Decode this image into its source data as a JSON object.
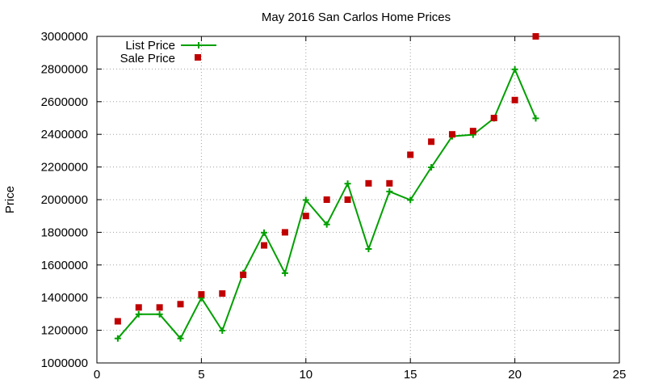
{
  "chart_data": {
    "type": "line",
    "title": "May 2016 San Carlos Home Prices",
    "xlabel": "",
    "ylabel": "Price",
    "xlim": [
      0,
      25
    ],
    "ylim": [
      1000000,
      3000000
    ],
    "xticks": [
      "0",
      "5",
      "10",
      "15",
      "20",
      "25"
    ],
    "yticks": [
      "1000000",
      "1200000",
      "1400000",
      "1600000",
      "1800000",
      "2000000",
      "2200000",
      "2400000",
      "2600000",
      "2800000",
      "3000000"
    ],
    "grid": true,
    "legend_position": "top-left",
    "series": [
      {
        "name": "List Price",
        "style": "linespoints",
        "color": "#00a000",
        "x": [
          1,
          2,
          3,
          4,
          5,
          6,
          7,
          8,
          9,
          10,
          11,
          12,
          13,
          14,
          15,
          16,
          17,
          18,
          19,
          20,
          21
        ],
        "y": [
          1150000,
          1298000,
          1298000,
          1150000,
          1398000,
          1198000,
          1550000,
          1798000,
          1550000,
          1998000,
          1848000,
          2098000,
          1698000,
          2050000,
          1998000,
          2198000,
          2388000,
          2398000,
          2498000,
          2798000,
          2498000
        ]
      },
      {
        "name": "Sale Price",
        "style": "points",
        "color": "#c00000",
        "x": [
          1,
          2,
          3,
          4,
          5,
          6,
          7,
          8,
          9,
          10,
          11,
          12,
          13,
          14,
          15,
          16,
          17,
          18,
          19,
          20,
          21
        ],
        "y": [
          1255000,
          1340000,
          1340000,
          1360000,
          1420000,
          1425000,
          1540000,
          1720000,
          1800000,
          1900000,
          2000000,
          2000000,
          2100000,
          2100000,
          2275000,
          2355000,
          2400000,
          2420000,
          2500000,
          2610000,
          3000000
        ]
      }
    ]
  }
}
